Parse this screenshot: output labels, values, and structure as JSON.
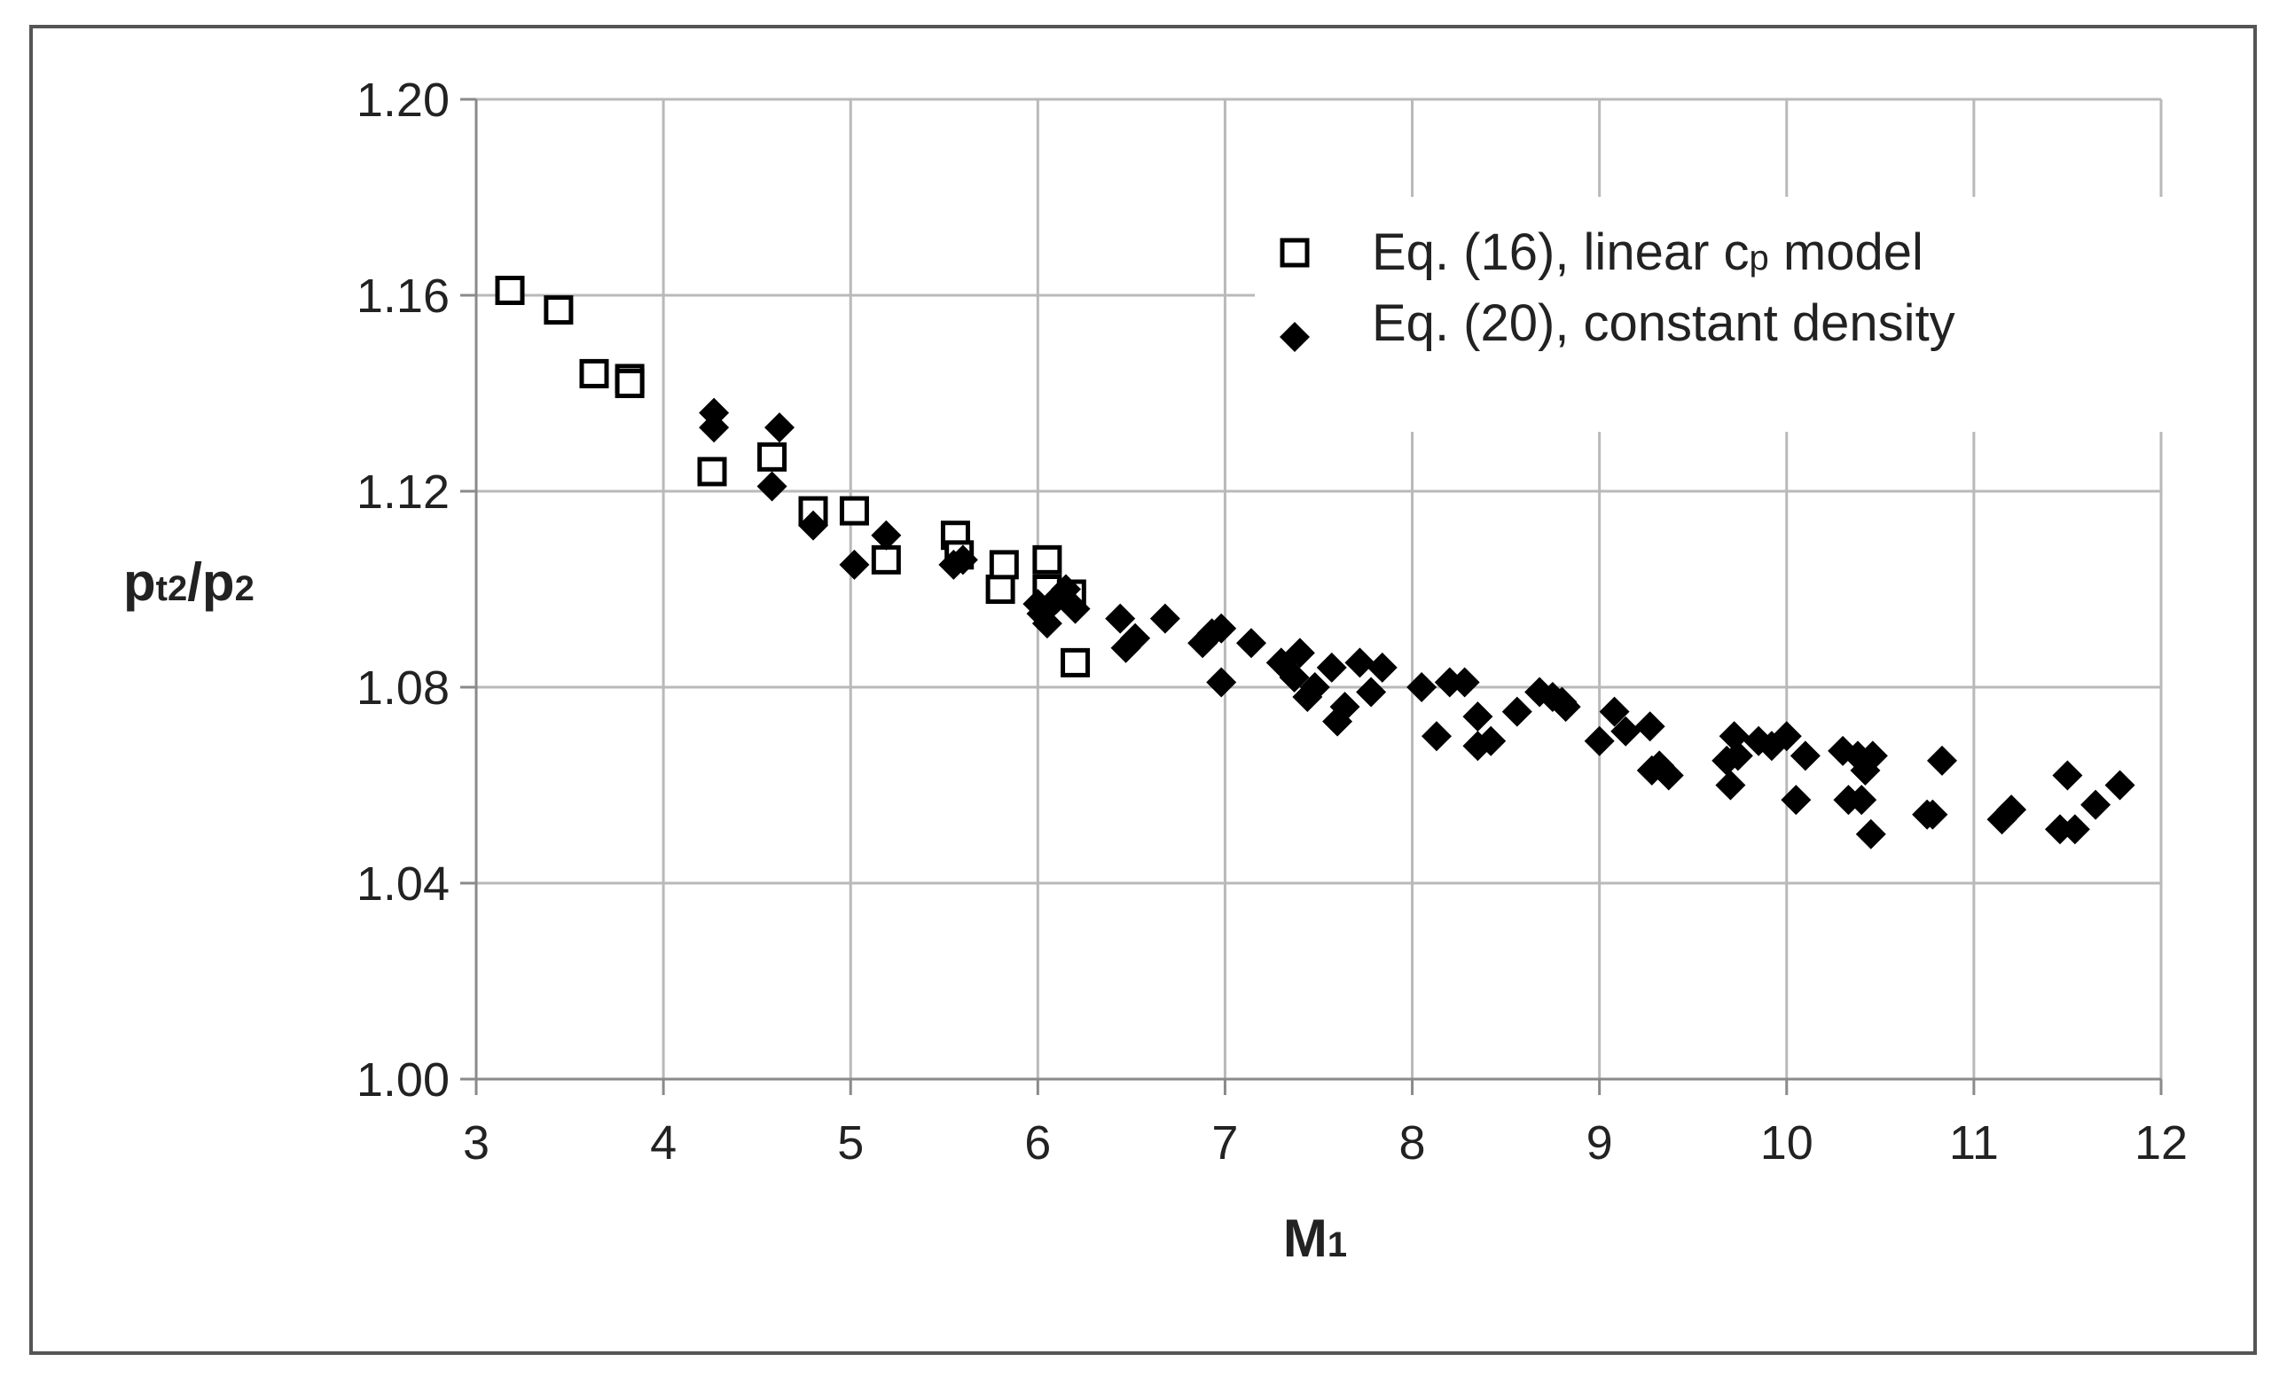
{
  "chart_data": {
    "type": "scatter",
    "xlabel": {
      "main": "M",
      "sub": "1"
    },
    "ylabel": {
      "p1": "p",
      "s1": "t2",
      "slash": "/p",
      "s2": "2"
    },
    "xlim": [
      3,
      12
    ],
    "ylim": [
      1.0,
      1.2
    ],
    "x_ticks": [
      "3",
      "4",
      "5",
      "6",
      "7",
      "8",
      "9",
      "10",
      "11",
      "12"
    ],
    "y_ticks": [
      "1.00",
      "1.04",
      "1.08",
      "1.12",
      "1.16",
      "1.20"
    ],
    "grid": true,
    "legend_position": "top-right",
    "series": [
      {
        "name_pre": "Eq. (16), linear c",
        "name_sub": "p",
        "name_post": " model",
        "marker": "open-square",
        "color": "#000000",
        "points": [
          [
            3.18,
            1.161
          ],
          [
            3.44,
            1.157
          ],
          [
            3.63,
            1.144
          ],
          [
            3.82,
            1.143
          ],
          [
            3.82,
            1.142
          ],
          [
            4.26,
            1.124
          ],
          [
            4.58,
            1.127
          ],
          [
            4.8,
            1.116
          ],
          [
            5.02,
            1.116
          ],
          [
            5.19,
            1.106
          ],
          [
            5.56,
            1.111
          ],
          [
            5.58,
            1.107
          ],
          [
            5.8,
            1.1
          ],
          [
            5.82,
            1.105
          ],
          [
            6.05,
            1.106
          ],
          [
            6.05,
            1.1
          ],
          [
            6.18,
            1.099
          ],
          [
            6.2,
            1.085
          ]
        ]
      },
      {
        "name": "Eq. (20), constant density",
        "marker": "filled-diamond",
        "color": "#000000",
        "points": [
          [
            4.27,
            1.136
          ],
          [
            4.27,
            1.133
          ],
          [
            4.58,
            1.121
          ],
          [
            4.62,
            1.133
          ],
          [
            4.8,
            1.113
          ],
          [
            5.02,
            1.105
          ],
          [
            5.19,
            1.111
          ],
          [
            5.55,
            1.105
          ],
          [
            5.6,
            1.106
          ],
          [
            6.0,
            1.097
          ],
          [
            6.02,
            1.095
          ],
          [
            6.05,
            1.093
          ],
          [
            6.1,
            1.098
          ],
          [
            6.15,
            1.1
          ],
          [
            6.2,
            1.096
          ],
          [
            6.44,
            1.094
          ],
          [
            6.47,
            1.088
          ],
          [
            6.52,
            1.09
          ],
          [
            6.68,
            1.094
          ],
          [
            6.88,
            1.089
          ],
          [
            6.93,
            1.091
          ],
          [
            6.98,
            1.092
          ],
          [
            6.98,
            1.081
          ],
          [
            7.14,
            1.089
          ],
          [
            7.3,
            1.085
          ],
          [
            7.37,
            1.082
          ],
          [
            7.4,
            1.087
          ],
          [
            7.44,
            1.078
          ],
          [
            7.48,
            1.08
          ],
          [
            7.57,
            1.084
          ],
          [
            7.6,
            1.073
          ],
          [
            7.64,
            1.076
          ],
          [
            7.72,
            1.085
          ],
          [
            7.78,
            1.079
          ],
          [
            7.84,
            1.084
          ],
          [
            8.05,
            1.08
          ],
          [
            8.13,
            1.07
          ],
          [
            8.2,
            1.081
          ],
          [
            8.28,
            1.081
          ],
          [
            8.35,
            1.074
          ],
          [
            8.35,
            1.068
          ],
          [
            8.42,
            1.069
          ],
          [
            8.56,
            1.075
          ],
          [
            8.68,
            1.079
          ],
          [
            8.75,
            1.078
          ],
          [
            8.8,
            1.077
          ],
          [
            8.82,
            1.076
          ],
          [
            9.0,
            1.069
          ],
          [
            9.08,
            1.075
          ],
          [
            9.14,
            1.071
          ],
          [
            9.27,
            1.072
          ],
          [
            9.28,
            1.063
          ],
          [
            9.32,
            1.064
          ],
          [
            9.37,
            1.062
          ],
          [
            9.68,
            1.065
          ],
          [
            9.7,
            1.06
          ],
          [
            9.72,
            1.07
          ],
          [
            9.74,
            1.066
          ],
          [
            9.85,
            1.069
          ],
          [
            9.92,
            1.068
          ],
          [
            10.0,
            1.07
          ],
          [
            10.05,
            1.057
          ],
          [
            10.1,
            1.066
          ],
          [
            10.3,
            1.067
          ],
          [
            10.33,
            1.057
          ],
          [
            10.38,
            1.066
          ],
          [
            10.4,
            1.057
          ],
          [
            10.42,
            1.063
          ],
          [
            10.45,
            1.05
          ],
          [
            10.46,
            1.066
          ],
          [
            10.75,
            1.054
          ],
          [
            10.78,
            1.054
          ],
          [
            10.83,
            1.065
          ],
          [
            11.15,
            1.053
          ],
          [
            11.2,
            1.055
          ],
          [
            11.46,
            1.051
          ],
          [
            11.5,
            1.062
          ],
          [
            11.54,
            1.051
          ],
          [
            11.65,
            1.056
          ],
          [
            11.78,
            1.06
          ]
        ]
      }
    ]
  }
}
